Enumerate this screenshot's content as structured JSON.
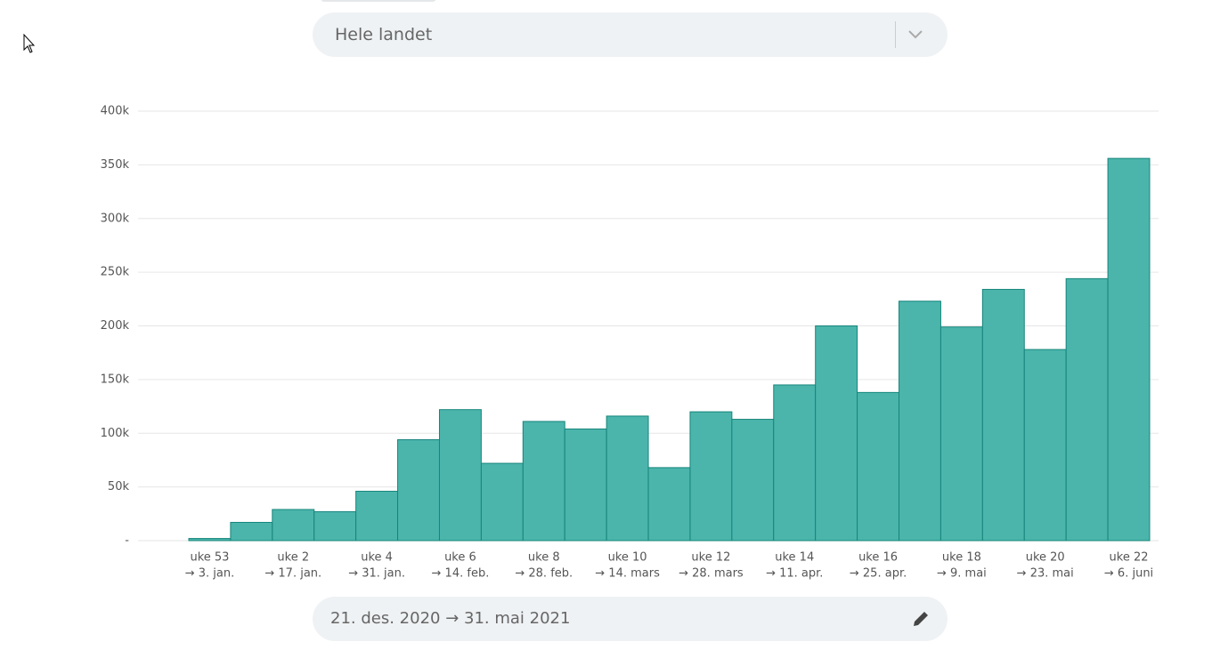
{
  "filter": {
    "region": "Hele landet"
  },
  "chart_data": {
    "type": "bar",
    "categories": [
      "uke 53",
      null,
      "uke 2",
      null,
      "uke 4",
      null,
      "uke 6",
      null,
      "uke 8",
      null,
      "uke 10",
      null,
      "uke 12",
      null,
      "uke 14",
      null,
      "uke 16",
      null,
      "uke 18",
      null,
      "uke 20",
      null,
      "uke 22"
    ],
    "category_sublabels": [
      "→ 3. jan.",
      null,
      "→ 17. jan.",
      null,
      "→ 31. jan.",
      null,
      "→ 14. feb.",
      null,
      "→ 28. feb.",
      null,
      "→ 14. mars",
      null,
      "→ 28. mars",
      null,
      "→ 11. apr.",
      null,
      "→ 25. apr.",
      null,
      "→ 9. mai",
      null,
      "→ 23. mai",
      null,
      "→ 6. juni"
    ],
    "values": [
      2000,
      17000,
      29000,
      27000,
      46000,
      94000,
      122000,
      72000,
      111000,
      104000,
      116000,
      68000,
      120000,
      113000,
      145000,
      200000,
      138000,
      223000,
      199000,
      234000,
      178000,
      244000,
      356000
    ],
    "color": "#4bb5ac",
    "ylim": [
      0,
      400000
    ],
    "yticks": [
      {
        "value": 0,
        "label": "-"
      },
      {
        "value": 50000,
        "label": "50k"
      },
      {
        "value": 100000,
        "label": "100k"
      },
      {
        "value": 150000,
        "label": "150k"
      },
      {
        "value": 200000,
        "label": "200k"
      },
      {
        "value": 250000,
        "label": "250k"
      },
      {
        "value": 300000,
        "label": "300k"
      },
      {
        "value": 350000,
        "label": "350k"
      },
      {
        "value": 400000,
        "label": "400k"
      }
    ],
    "grid": true
  },
  "date_range": "21. des. 2020 → 31. mai 2021"
}
